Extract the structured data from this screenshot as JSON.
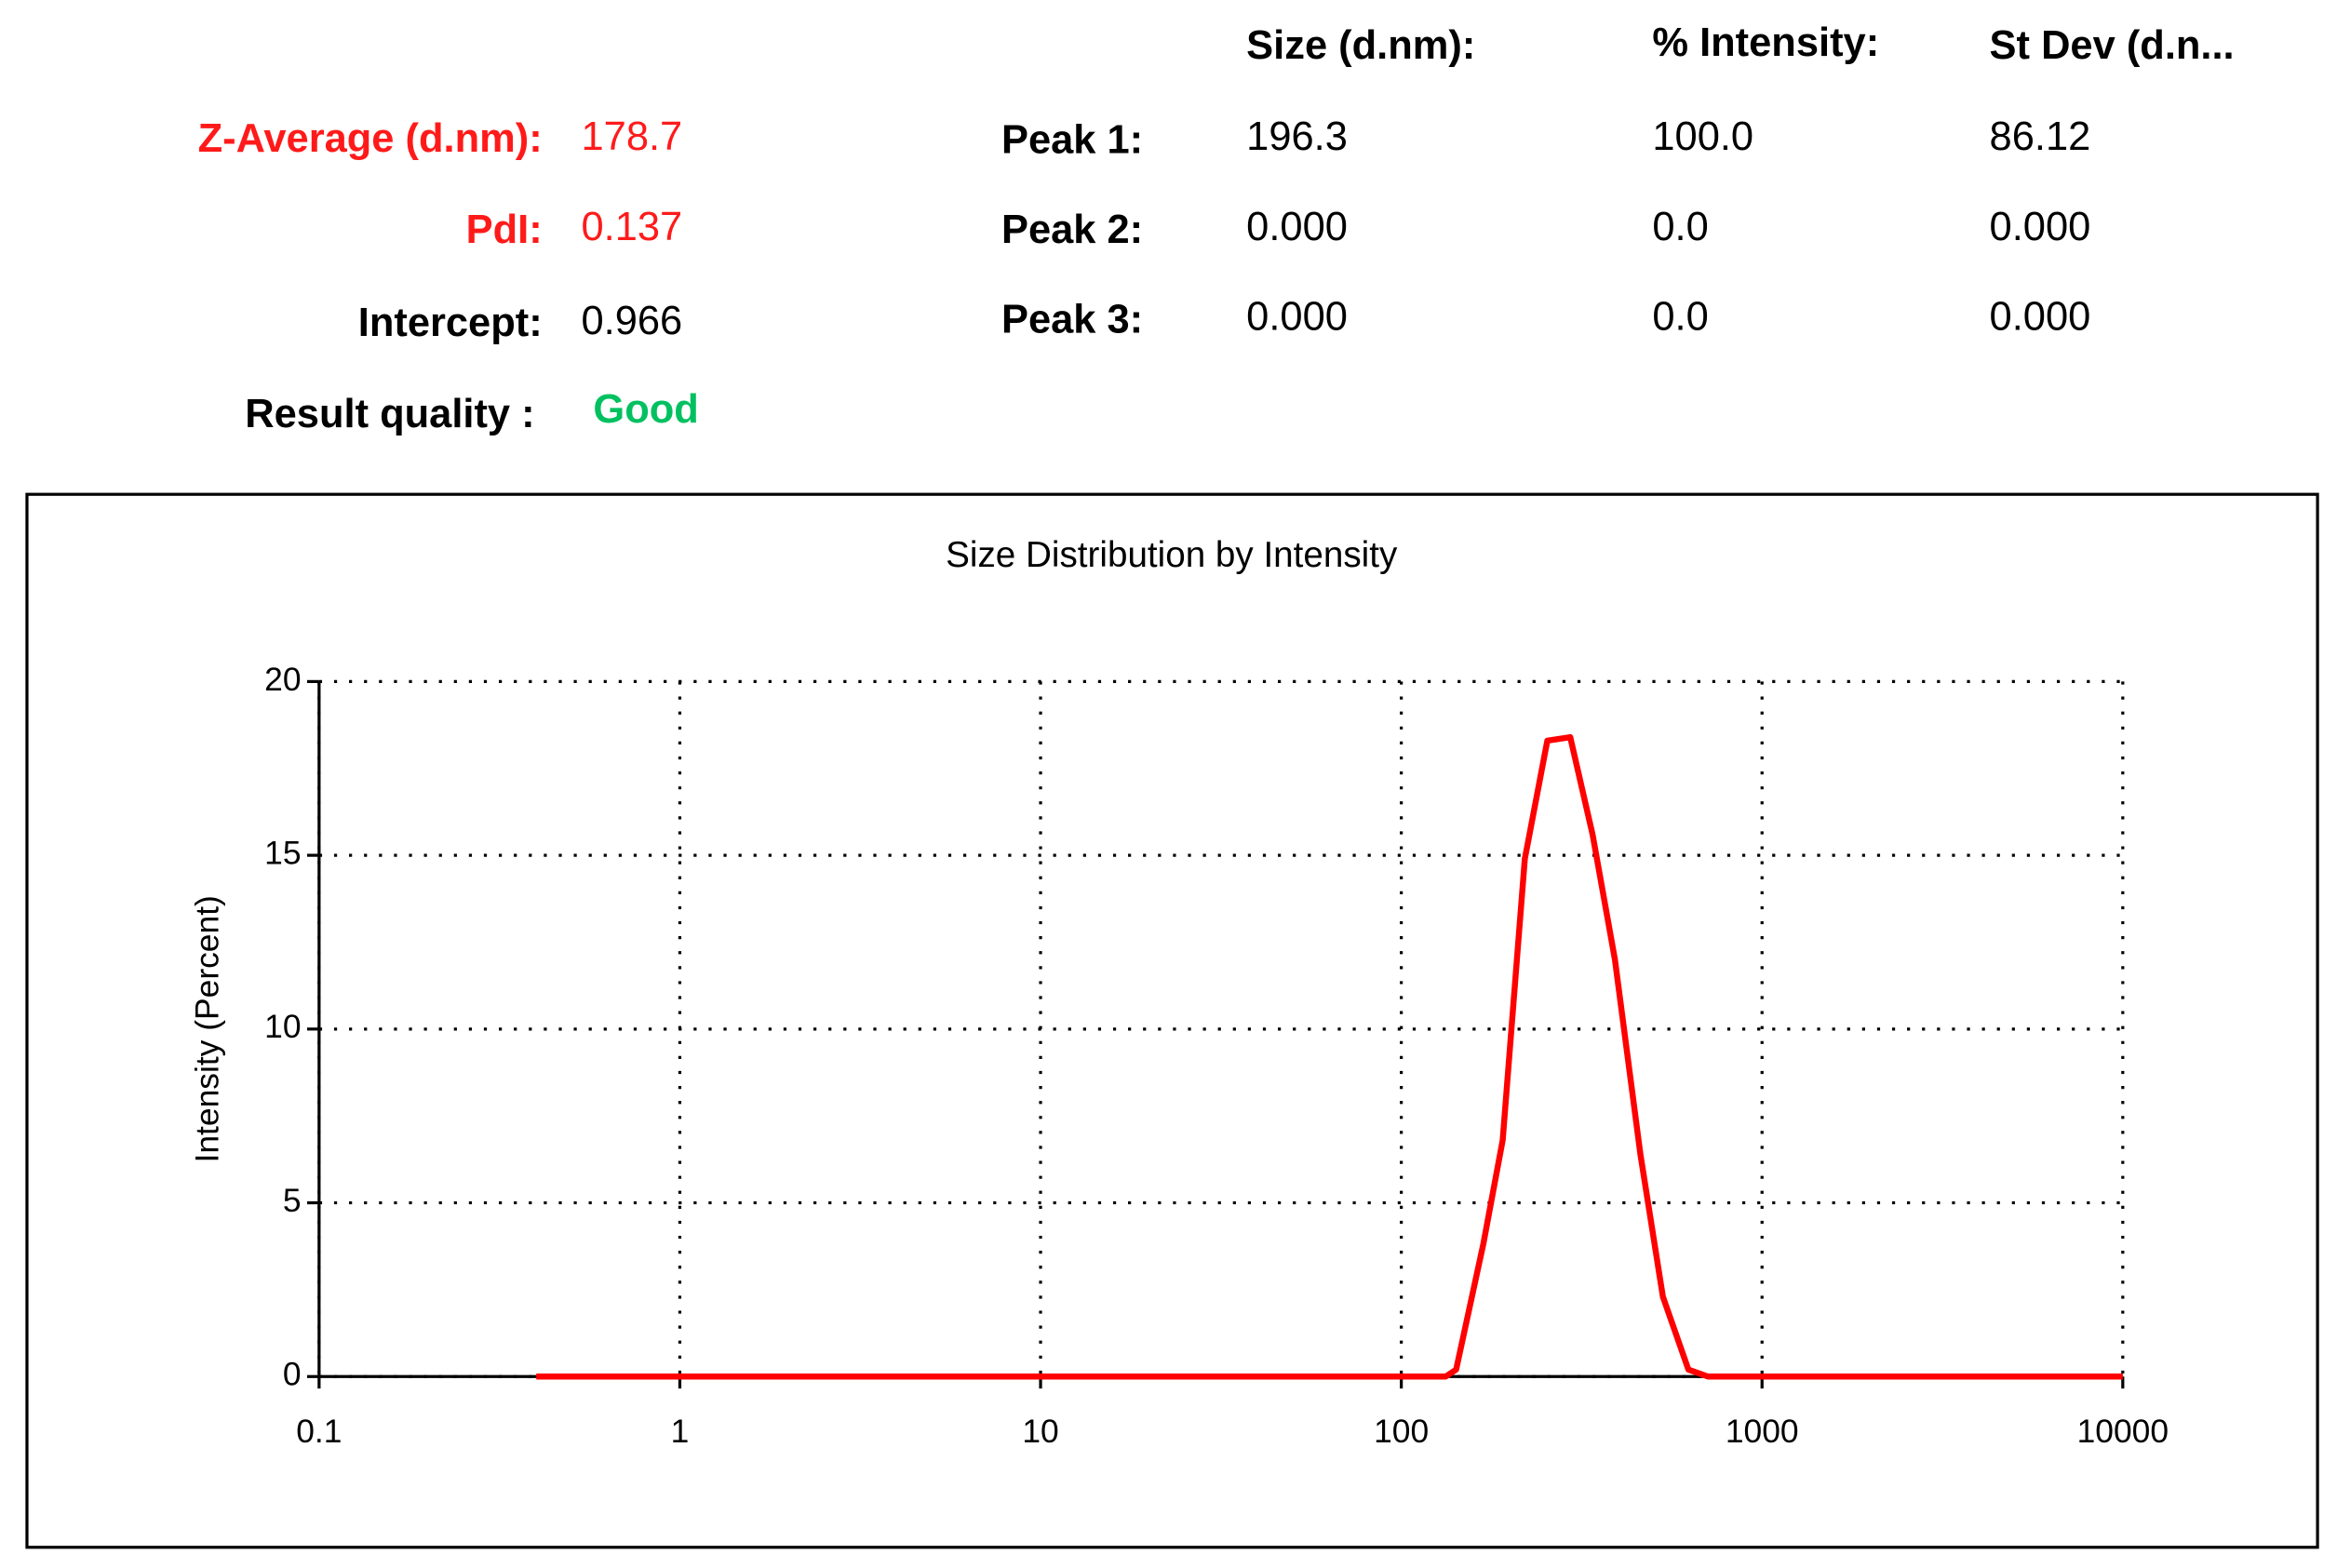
{
  "summary": {
    "rows": [
      {
        "label": "Z-Average (d.nm):",
        "value": "178.7"
      },
      {
        "label": "PdI:",
        "value": "0.137"
      },
      {
        "label": "Intercept:",
        "value": "0.966"
      }
    ],
    "result_quality": {
      "label": "Result quality :",
      "value": "Good"
    }
  },
  "peaks": {
    "headers": [
      "Size (d.nm):",
      "% Intensity:",
      "St Dev (d.n..."
    ],
    "rows": [
      {
        "label": "Peak 1:",
        "values": [
          "196.3",
          "100.0",
          "86.12"
        ]
      },
      {
        "label": "Peak 2:",
        "values": [
          "0.000",
          "0.0",
          "0.000"
        ]
      },
      {
        "label": "Peak 3:",
        "values": [
          "0.000",
          "0.0",
          "0.000"
        ]
      }
    ]
  },
  "chart_data": {
    "type": "line",
    "title": "Size Distribution by Intensity",
    "ylabel": "Intensity (Percent)",
    "x": [
      0.4,
      1,
      10,
      100,
      132.7,
      141.9,
      168.7,
      191,
      220,
      254,
      294,
      339,
      391,
      460,
      531,
      625,
      708,
      1000,
      10000
    ],
    "values": [
      0,
      0,
      0,
      0,
      0,
      0.2,
      3.8,
      6.8,
      14.9,
      18.3,
      18.4,
      15.6,
      12,
      6.4,
      2.3,
      0.2,
      0,
      0,
      0
    ],
    "color": "#ff0000",
    "xlog": true,
    "xlim": [
      0.1,
      10000
    ],
    "ylim": [
      0,
      20
    ],
    "xticks": [
      0.1,
      1,
      10,
      100,
      1000,
      10000
    ],
    "yticks": [
      0,
      5,
      10,
      15,
      20
    ],
    "grid": true
  }
}
